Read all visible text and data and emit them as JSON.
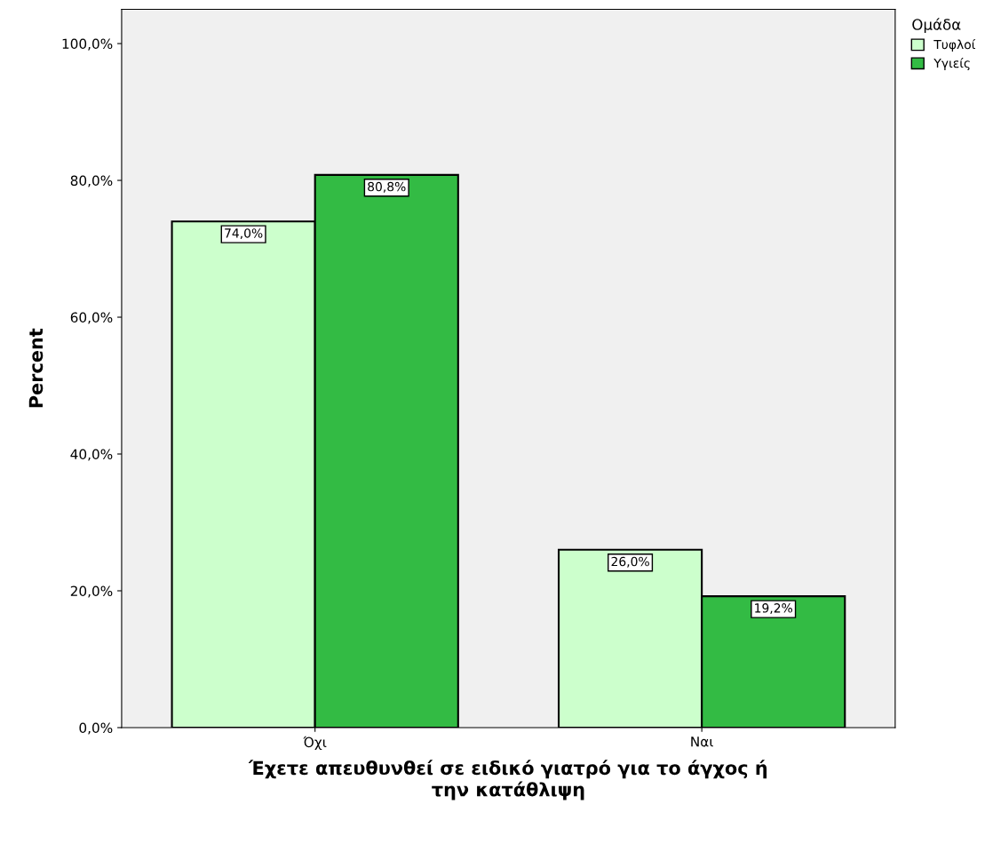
{
  "chart_data": {
    "type": "bar",
    "xlabel": "Έχετε απευθυνθεί σε ειδικό γιατρό για το άγχος ή\nτην κατάθλιψη",
    "ylabel": "Percent",
    "legend_title": "Ομάδα",
    "categories": [
      "Όχι",
      "Ναι"
    ],
    "series": [
      {
        "name": "Τυφλοί",
        "color": "#ccffcc",
        "values": [
          74.0,
          26.0
        ],
        "value_labels": [
          "74,0%",
          "26,0%"
        ]
      },
      {
        "name": "Υγιείς",
        "color": "#33bb44",
        "values": [
          80.8,
          19.2
        ],
        "value_labels": [
          "80,8%",
          "19,2%"
        ]
      }
    ],
    "ylim": [
      0,
      105
    ],
    "yticks": [
      {
        "value": 0,
        "label": "0,0%"
      },
      {
        "value": 20,
        "label": "20,0%"
      },
      {
        "value": 40,
        "label": "40,0%"
      },
      {
        "value": 60,
        "label": "60,0%"
      },
      {
        "value": 80,
        "label": "80,0%"
      },
      {
        "value": 100,
        "label": "100,0%"
      }
    ],
    "grid": false,
    "legend": "top right"
  }
}
